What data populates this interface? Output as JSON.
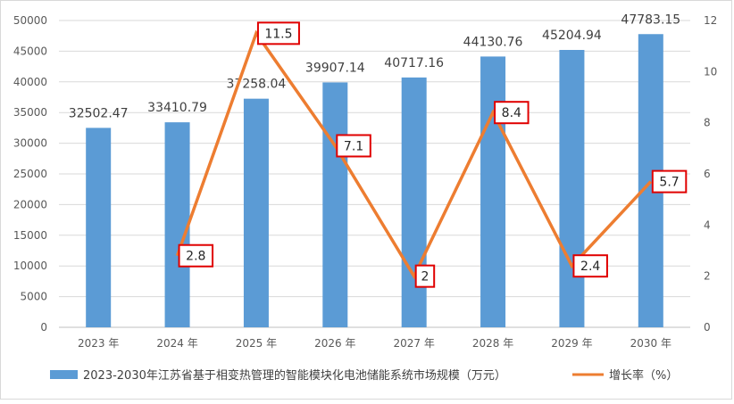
{
  "chart_data": {
    "type": "bar+line",
    "categories": [
      "2023 年",
      "2024 年",
      "2025 年",
      "2026 年",
      "2027 年",
      "2028 年",
      "2029 年",
      "2030 年"
    ],
    "bar_series": {
      "name": "2023-2030年江苏省基于相变热管理的智能模块化电池储能系统市场规模（万元）",
      "values": [
        32502.47,
        33410.79,
        37258.04,
        39907.14,
        40717.16,
        44130.76,
        45204.94,
        47783.15
      ],
      "labels": [
        "32502.47",
        "33410.79",
        "37258.04",
        "39907.14",
        "40717.16",
        "44130.76",
        "45204.94",
        "47783.15"
      ],
      "color": "#5b9bd5"
    },
    "line_series": {
      "name": "增长率（%）",
      "values": [
        null,
        2.8,
        11.5,
        7.1,
        2,
        8.4,
        2.4,
        5.7
      ],
      "labels": [
        "",
        "2.8",
        "11.5",
        "7.1",
        "2",
        "8.4",
        "2.4",
        "5.7"
      ],
      "color": "#ed7d31"
    },
    "y_left": {
      "min": 0,
      "max": 50000,
      "ticks": [
        "0",
        "5000",
        "10000",
        "15000",
        "20000",
        "25000",
        "30000",
        "35000",
        "40000",
        "45000",
        "50000"
      ]
    },
    "y_right": {
      "min": 0,
      "max": 12,
      "ticks": [
        "0",
        "2",
        "4",
        "6",
        "8",
        "10",
        "12"
      ]
    },
    "grid": true,
    "legend_position": "bottom",
    "label_box_color": "#e00000"
  }
}
